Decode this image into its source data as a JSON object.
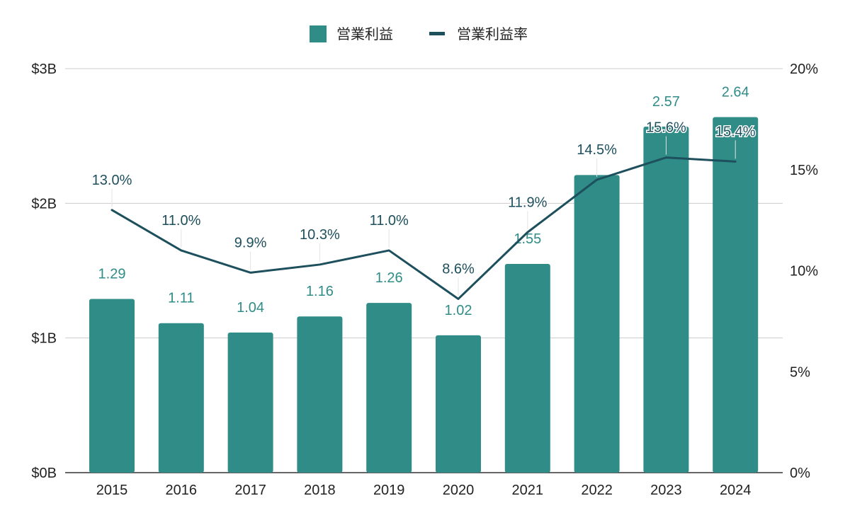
{
  "chart_data": {
    "type": "bar",
    "categories": [
      "2015",
      "2016",
      "2017",
      "2018",
      "2019",
      "2020",
      "2021",
      "2022",
      "2023",
      "2024"
    ],
    "series": [
      {
        "name": "営業利益",
        "type": "bar",
        "axis": "left",
        "color": "#2f8c87",
        "values": [
          1.29,
          1.11,
          1.04,
          1.16,
          1.26,
          1.02,
          1.55,
          2.21,
          2.57,
          2.64
        ],
        "labels": [
          "1.29",
          "1.11",
          "1.04",
          "1.16",
          "1.26",
          "1.02",
          "1.55",
          "",
          "2.57",
          "2.64"
        ]
      },
      {
        "name": "営業利益率",
        "type": "line",
        "axis": "right",
        "color": "#1d4f5c",
        "values": [
          13.0,
          11.0,
          9.9,
          10.3,
          11.0,
          8.6,
          11.9,
          14.5,
          15.6,
          15.4
        ],
        "labels": [
          "13.0%",
          "11.0%",
          "9.9%",
          "10.3%",
          "11.0%",
          "8.6%",
          "11.9%",
          "14.5%",
          "15.6%",
          "15.4%"
        ]
      }
    ],
    "y_left": {
      "ylim": [
        0,
        3
      ],
      "ticks": [
        0,
        1,
        2,
        3
      ],
      "tick_labels": [
        "$0B",
        "$1B",
        "$2B",
        "$3B"
      ]
    },
    "y_right": {
      "ylim": [
        0,
        20
      ],
      "ticks": [
        0,
        5,
        10,
        15,
        20
      ],
      "tick_labels": [
        "0%",
        "5%",
        "10%",
        "15%",
        "20%"
      ]
    },
    "grid": true,
    "legend_position": "top-center",
    "title": "",
    "xlabel": "",
    "ylabel": ""
  }
}
